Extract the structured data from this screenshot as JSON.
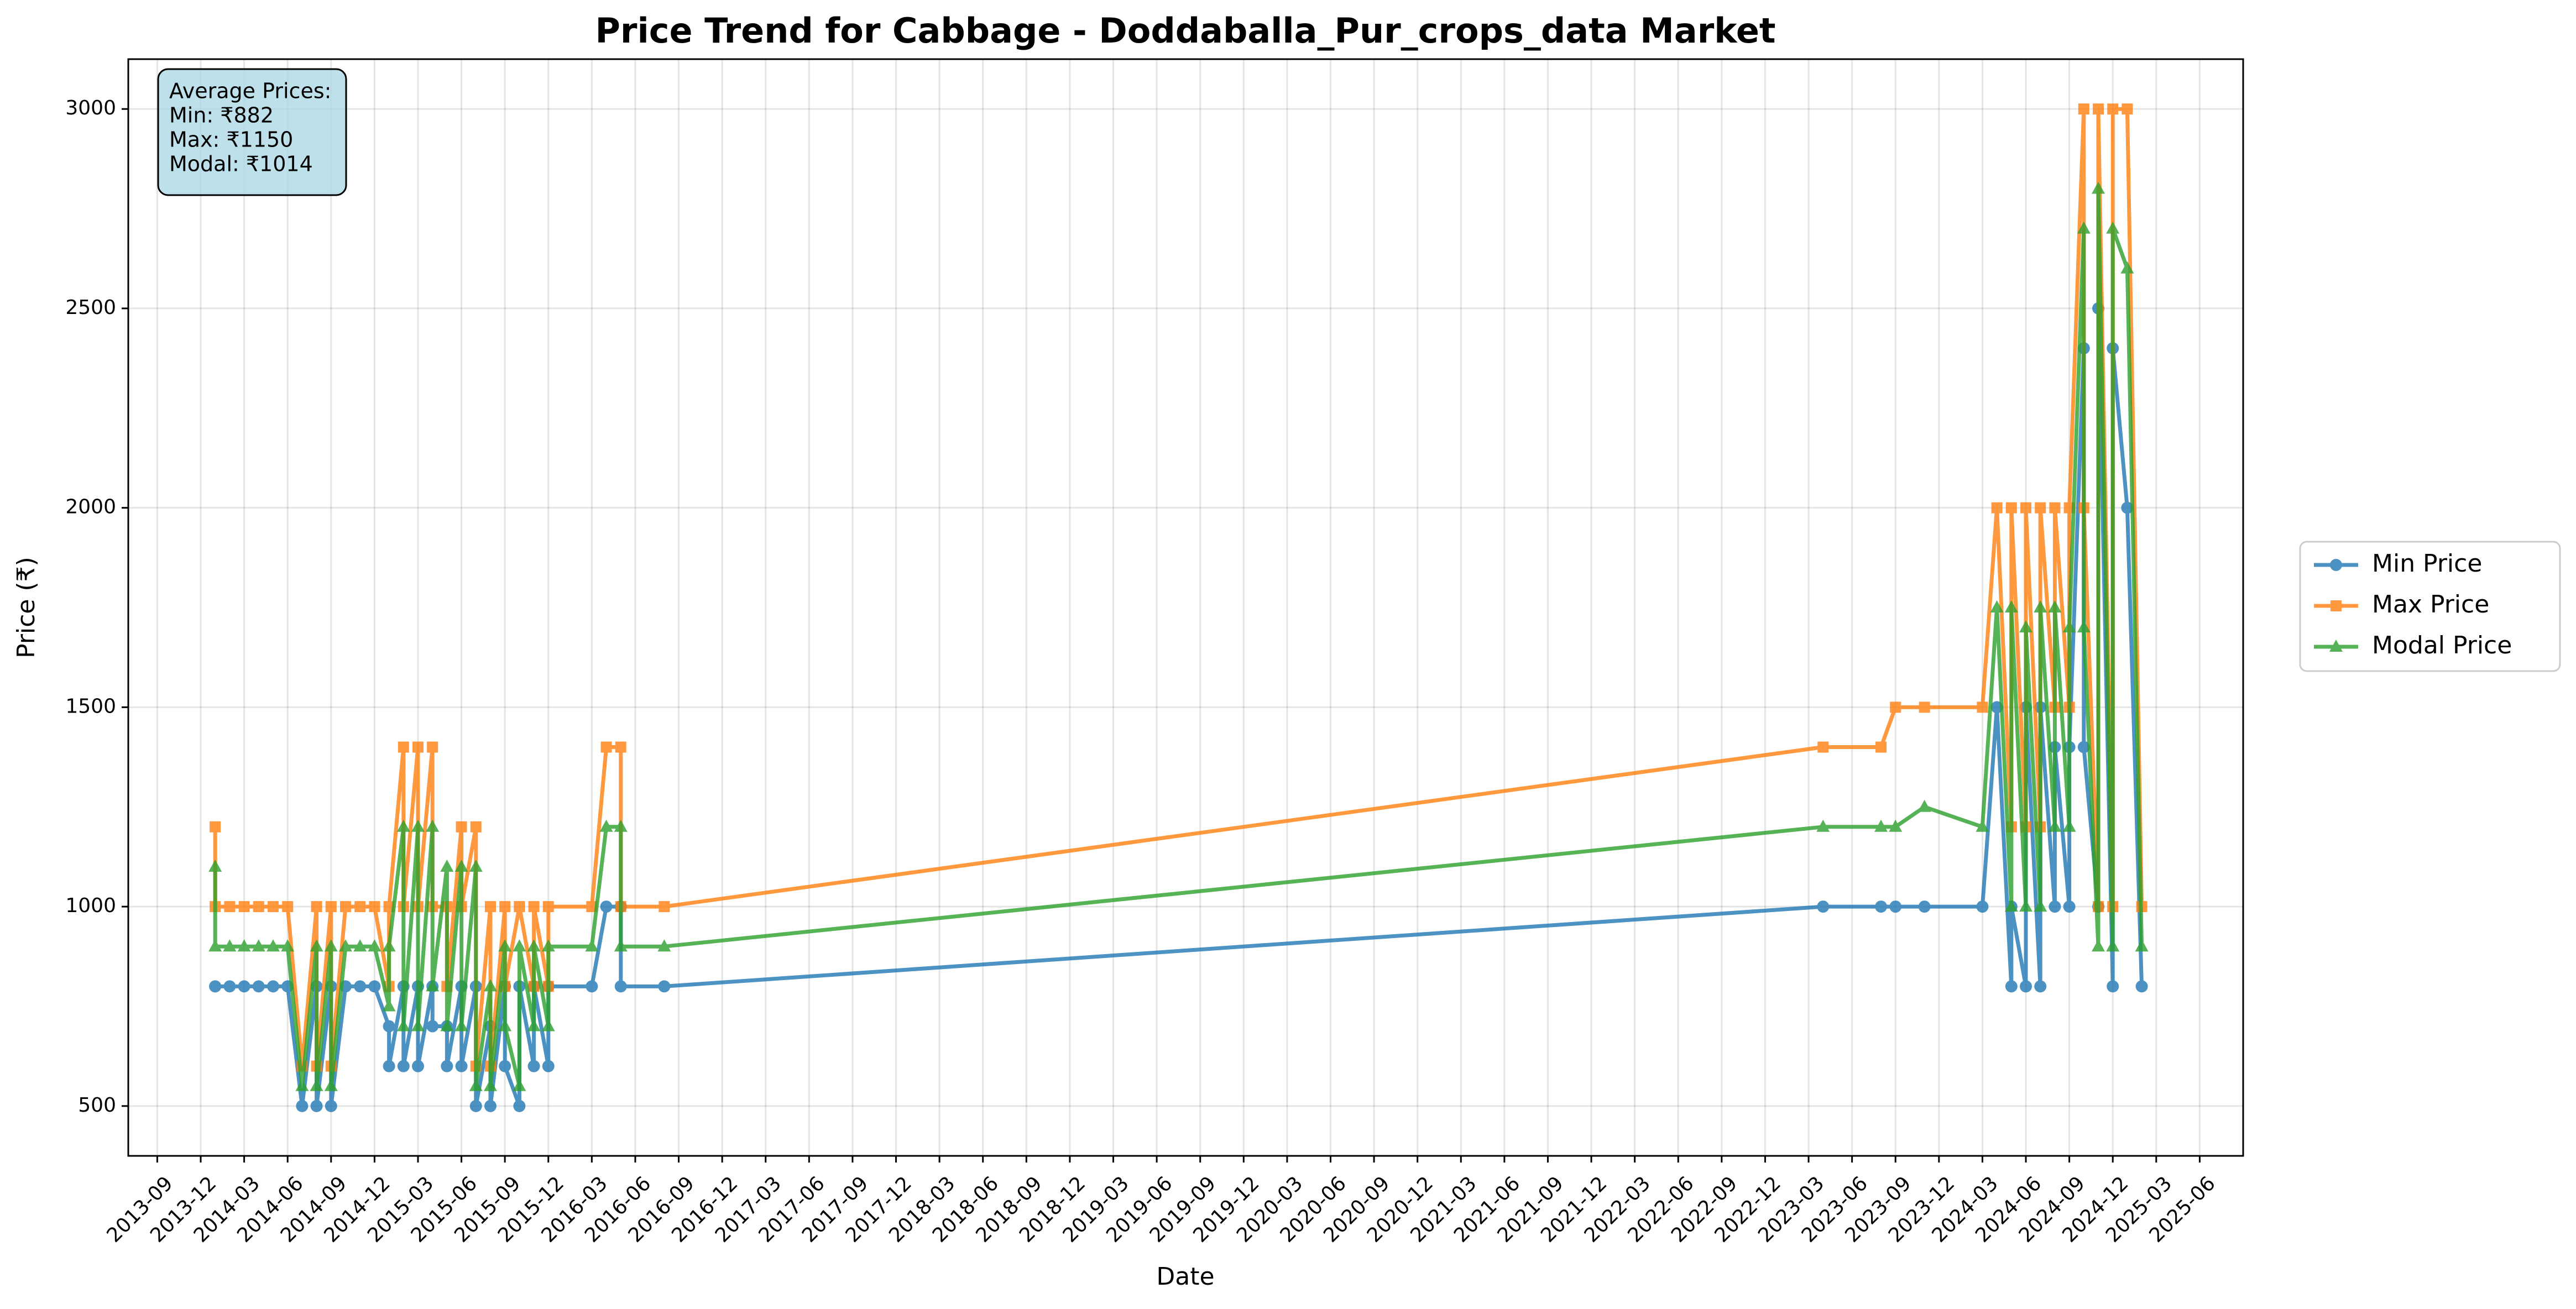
{
  "chart_data": {
    "type": "line",
    "title": "Price Trend for Cabbage - Doddaballa_Pur_crops_data Market",
    "x_label": "Date",
    "y_label": "Price (₹)",
    "annotation": [
      "Average Prices:",
      "Min: ₹882",
      "Max: ₹1150",
      "Modal: ₹1014"
    ],
    "x": [
      "2014-01",
      "2014-01",
      "2014-02",
      "2014-03",
      "2014-04",
      "2014-05",
      "2014-06",
      "2014-07",
      "2014-08",
      "2014-08",
      "2014-09",
      "2014-09",
      "2014-10",
      "2014-11",
      "2014-12",
      "2015-01",
      "2015-01",
      "2015-02",
      "2015-02",
      "2015-03",
      "2015-03",
      "2015-04",
      "2015-04",
      "2015-05",
      "2015-05",
      "2015-06",
      "2015-06",
      "2015-07",
      "2015-07",
      "2015-08",
      "2015-08",
      "2015-09",
      "2015-09",
      "2015-10",
      "2015-10",
      "2015-11",
      "2015-11",
      "2015-12",
      "2015-12",
      "2016-03",
      "2016-04",
      "2016-05",
      "2016-05",
      "2016-08",
      "2023-04",
      "2023-08",
      "2023-09",
      "2023-11",
      "2024-03",
      "2024-04",
      "2024-05",
      "2024-05",
      "2024-06",
      "2024-06",
      "2024-07",
      "2024-07",
      "2024-08",
      "2024-08",
      "2024-09",
      "2024-09",
      "2024-10",
      "2024-10",
      "2024-11",
      "2024-11",
      "2024-12",
      "2024-12",
      "2025-01",
      "2025-02"
    ],
    "series": [
      {
        "name": "Min Price",
        "color": "#1f77b4",
        "marker": "circle",
        "values": [
          800,
          800,
          800,
          800,
          800,
          800,
          800,
          500,
          800,
          500,
          800,
          500,
          800,
          800,
          800,
          700,
          600,
          800,
          600,
          800,
          600,
          800,
          700,
          700,
          600,
          800,
          600,
          800,
          500,
          700,
          500,
          800,
          600,
          500,
          800,
          600,
          800,
          600,
          800,
          800,
          1000,
          1000,
          800,
          800,
          1000,
          1000,
          1000,
          1000,
          1000,
          1500,
          800,
          1000,
          800,
          1500,
          800,
          1500,
          1000,
          1400,
          1000,
          1400,
          2400,
          1400,
          1000,
          2500,
          800,
          2400,
          2000,
          800
        ]
      },
      {
        "name": "Max Price",
        "color": "#ff7f0e",
        "marker": "square",
        "values": [
          1200,
          1000,
          1000,
          1000,
          1000,
          1000,
          1000,
          600,
          1000,
          600,
          1000,
          600,
          1000,
          1000,
          1000,
          800,
          1000,
          1400,
          1000,
          1400,
          1000,
          1400,
          1000,
          1000,
          800,
          1200,
          1000,
          1200,
          600,
          1000,
          600,
          1000,
          800,
          1000,
          1000,
          800,
          1000,
          800,
          1000,
          1000,
          1400,
          1400,
          1000,
          1000,
          1400,
          1400,
          1500,
          1500,
          1500,
          2000,
          1200,
          2000,
          1200,
          2000,
          1200,
          2000,
          1500,
          2000,
          1500,
          2000,
          3000,
          2000,
          1000,
          3000,
          1000,
          3000,
          3000,
          1000
        ]
      },
      {
        "name": "Modal Price",
        "color": "#2ca02c",
        "marker": "triangle",
        "values": [
          1100,
          900,
          900,
          900,
          900,
          900,
          900,
          550,
          900,
          550,
          900,
          550,
          900,
          900,
          900,
          750,
          900,
          1200,
          700,
          1200,
          700,
          1200,
          800,
          1100,
          700,
          1100,
          700,
          1100,
          550,
          800,
          550,
          900,
          700,
          550,
          900,
          700,
          900,
          700,
          900,
          900,
          1200,
          1200,
          900,
          900,
          1200,
          1200,
          1200,
          1250,
          1200,
          1750,
          1000,
          1750,
          1000,
          1700,
          1000,
          1750,
          1200,
          1750,
          1200,
          1700,
          2700,
          1700,
          900,
          2800,
          900,
          2700,
          2600,
          900
        ]
      }
    ],
    "xlim": [
      "2013-07",
      "2025-09"
    ],
    "xticks": [
      "2013-09",
      "2013-12",
      "2014-03",
      "2014-06",
      "2014-09",
      "2014-12",
      "2015-03",
      "2015-06",
      "2015-09",
      "2015-12",
      "2016-03",
      "2016-06",
      "2016-09",
      "2016-12",
      "2017-03",
      "2017-06",
      "2017-09",
      "2017-12",
      "2018-03",
      "2018-06",
      "2018-09",
      "2018-12",
      "2019-03",
      "2019-06",
      "2019-09",
      "2019-12",
      "2020-03",
      "2020-06",
      "2020-09",
      "2020-12",
      "2021-03",
      "2021-06",
      "2021-09",
      "2021-12",
      "2022-03",
      "2022-06",
      "2022-09",
      "2022-12",
      "2023-03",
      "2023-06",
      "2023-09",
      "2023-12",
      "2024-03",
      "2024-06",
      "2024-09",
      "2024-12",
      "2025-03",
      "2025-06"
    ],
    "ylim": [
      375,
      3125
    ],
    "yticks": [
      500,
      1000,
      1500,
      2000,
      2500,
      3000
    ],
    "grid": true,
    "legend": "right"
  }
}
